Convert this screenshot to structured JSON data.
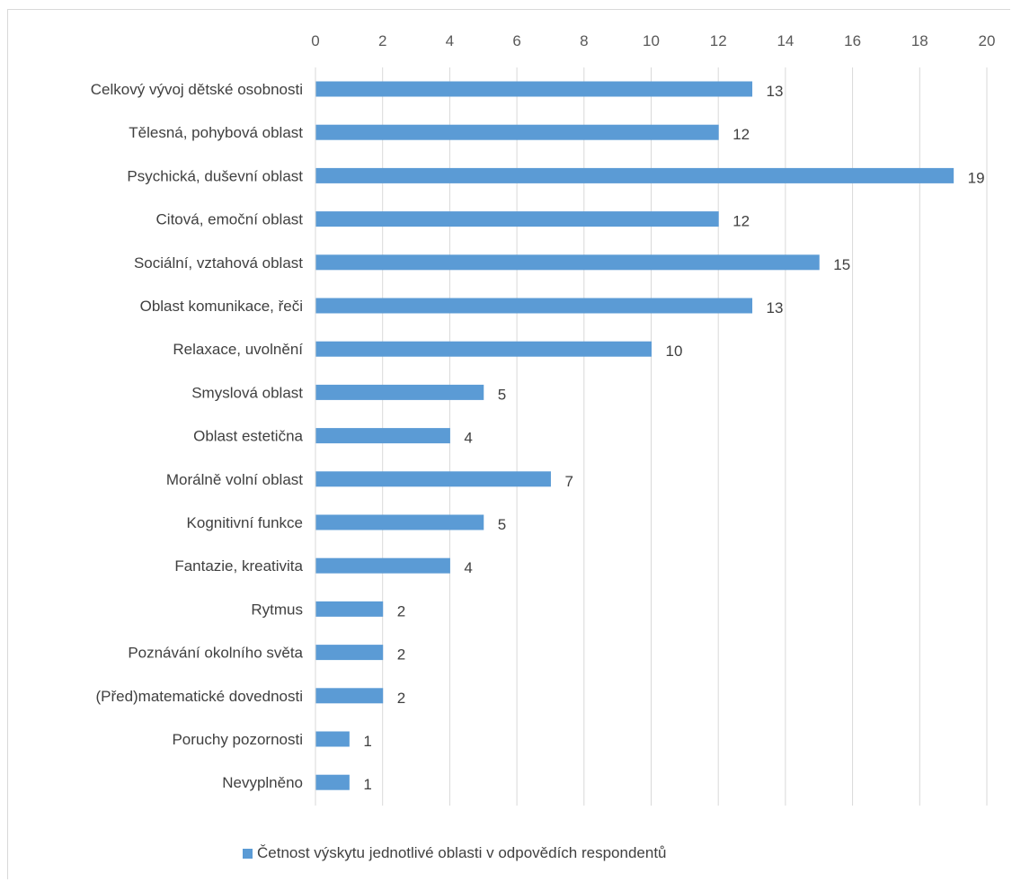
{
  "chart_data": {
    "type": "bar",
    "orientation": "horizontal",
    "categories": [
      "Celkový vývoj dětské osobnosti",
      "Tělesná, pohybová oblast",
      "Psychická, duševní oblast",
      "Citová, emoční oblast",
      "Sociální, vztahová oblast",
      "Oblast komunikace, řeči",
      "Relaxace, uvolnění",
      "Smyslová oblast",
      "Oblast estetična",
      "Morálně volní oblast",
      "Kognitivní funkce",
      "Fantazie, kreativita",
      "Rytmus",
      "Poznávání okolního světa",
      "(Před)matematické dovednosti",
      "Poruchy pozornosti",
      "Nevyplněno"
    ],
    "series": [
      {
        "name": "Četnost výskytu jednotlivé oblasti v odpovědích respondentů",
        "values": [
          13,
          12,
          19,
          12,
          15,
          13,
          10,
          5,
          4,
          7,
          5,
          4,
          2,
          2,
          2,
          1,
          1
        ],
        "color": "#5b9bd5"
      }
    ],
    "xlim": [
      0,
      20
    ],
    "xticks": [
      "0",
      "2",
      "4",
      "6",
      "8",
      "10",
      "12",
      "14",
      "16",
      "18",
      "20"
    ],
    "x_axis_position": "top",
    "grid": true,
    "legend_position": "bottom",
    "data_labels": true
  }
}
